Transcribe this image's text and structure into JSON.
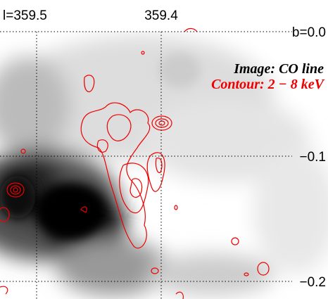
{
  "axes": {
    "top_labels": [
      "l=359.5",
      "359.4"
    ],
    "right_labels": [
      "b=0.0",
      "−0.1",
      "−0.2"
    ]
  },
  "legend": {
    "image": "Image: CO line",
    "contour": "Contour: 2 − 8 keV"
  }
}
